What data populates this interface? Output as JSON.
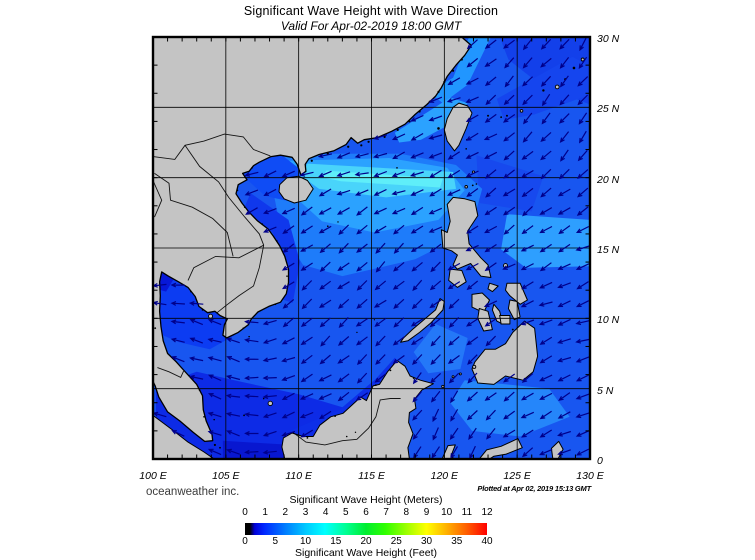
{
  "header": {
    "title": "Significant Wave Height with Wave Direction",
    "subtitle": "Valid For Apr-02-2019 18:00 GMT"
  },
  "footer": {
    "credit": "oceanweather inc.",
    "plotted": "Plotted at Apr 02, 2019 15:13 GMT"
  },
  "chart_data": {
    "type": "map-vector-field",
    "projection": {
      "lon_range": [
        100,
        130
      ],
      "lat_range": [
        0,
        30
      ],
      "grid_interval_deg": 5
    },
    "x_tick_labels": [
      "100 E",
      "105 E",
      "110 E",
      "115 E",
      "120 E",
      "125 E",
      "130 E"
    ],
    "y_tick_labels": [
      "30 N",
      "25 N",
      "20 N",
      "15 N",
      "10 N",
      "5 N",
      "0"
    ],
    "colors": {
      "ocean_base": "#1856F0",
      "land": "#C4C4C4",
      "coast": "#000000",
      "border": "#000000",
      "grid": "#000000",
      "arrow": "#00008B"
    },
    "colorbar": {
      "title_top": "Significant Wave Height (Meters)",
      "title_bottom": "Significant Wave Height (Feet)",
      "meters_ticks": [
        0,
        1,
        2,
        3,
        4,
        5,
        6,
        7,
        8,
        9,
        10,
        11,
        12
      ],
      "feet_ticks": [
        0,
        5,
        10,
        15,
        20,
        25,
        30,
        35,
        40
      ],
      "gradient": [
        {
          "at": 0.0,
          "color": "#000000"
        },
        {
          "at": 0.02,
          "color": "#000000"
        },
        {
          "at": 0.04,
          "color": "#0000D8"
        },
        {
          "at": 0.08,
          "color": "#0028FF"
        },
        {
          "at": 0.17,
          "color": "#0080FF"
        },
        {
          "at": 0.25,
          "color": "#00C8FF"
        },
        {
          "at": 0.33,
          "color": "#00FFFF"
        },
        {
          "at": 0.42,
          "color": "#00FF90"
        },
        {
          "at": 0.5,
          "color": "#00EE30"
        },
        {
          "at": 0.58,
          "color": "#30FF00"
        },
        {
          "at": 0.67,
          "color": "#A0FF00"
        },
        {
          "at": 0.75,
          "color": "#FFFF00"
        },
        {
          "at": 0.83,
          "color": "#FFB400"
        },
        {
          "at": 0.92,
          "color": "#FF5A00"
        },
        {
          "at": 1.0,
          "color": "#FF0000"
        }
      ]
    },
    "wave_height_regions": [
      {
        "name": "pacific-ne-dark",
        "approx_height_m": 2.1,
        "color": "#1340EA",
        "polygon": [
          [
            123.8,
            30
          ],
          [
            130,
            30
          ],
          [
            130,
            25.2
          ],
          [
            126.6,
            26.6
          ],
          [
            124.4,
            28.4
          ]
        ]
      },
      {
        "name": "ryukyu-dark",
        "approx_height_m": 2.1,
        "color": "#1545EE",
        "polygon": [
          [
            123.6,
            25.6
          ],
          [
            128.8,
            28.6
          ],
          [
            130,
            27.9
          ],
          [
            130,
            25.9
          ],
          [
            126.2,
            24.5
          ],
          [
            124.1,
            24.1
          ]
        ]
      },
      {
        "name": "east-taiwan-dark",
        "approx_height_m": 2.1,
        "color": "#1749EE",
        "polygon": [
          [
            122.2,
            21.6
          ],
          [
            126.8,
            20.1
          ],
          [
            126,
            17.6
          ],
          [
            122.4,
            18.2
          ]
        ]
      },
      {
        "name": "ecs-coast-light",
        "approx_height_m": 2.6,
        "color": "#2196FF",
        "polygon": [
          [
            118.9,
            26.1
          ],
          [
            120.6,
            27.1
          ],
          [
            121.7,
            30
          ],
          [
            123.2,
            30
          ],
          [
            121.6,
            26.6
          ],
          [
            119.9,
            25.3
          ]
        ]
      },
      {
        "name": "taiwan-strait-light",
        "approx_height_m": 2.7,
        "color": "#2BA2FF",
        "polygon": [
          [
            116.6,
            23.2
          ],
          [
            118.9,
            24.7
          ],
          [
            120.4,
            25.7
          ],
          [
            121.6,
            25.3
          ],
          [
            120.4,
            23.8
          ],
          [
            118.4,
            22.7
          ],
          [
            116.9,
            22.5
          ]
        ]
      },
      {
        "name": "north-scs-light",
        "approx_height_m": 2.4,
        "color": "#1E7CFA",
        "polygon": [
          [
            108.4,
            21.7
          ],
          [
            117,
            21.7
          ],
          [
            120.8,
            20.9
          ],
          [
            122.6,
            19.2
          ],
          [
            121.8,
            16.2
          ],
          [
            118,
            14.2
          ],
          [
            113,
            13
          ],
          [
            110.3,
            13.8
          ],
          [
            108.8,
            16.2
          ],
          [
            108.2,
            19.3
          ]
        ]
      },
      {
        "name": "north-scs-lighter",
        "approx_height_m": 2.7,
        "color": "#2BA2FF",
        "polygon": [
          [
            109.3,
            21.2
          ],
          [
            116.2,
            21.4
          ],
          [
            120.2,
            20.7
          ],
          [
            121.4,
            19.1
          ],
          [
            119.6,
            17
          ],
          [
            115.2,
            16.1
          ],
          [
            111.6,
            16.9
          ],
          [
            110,
            18.4
          ],
          [
            109.3,
            20.1
          ]
        ]
      },
      {
        "name": "band-pale-cyan",
        "approx_height_m": 3.0,
        "color": "#49D4FA",
        "polygon": [
          [
            110.6,
            21
          ],
          [
            120.6,
            20.4
          ],
          [
            120.8,
            19.2
          ],
          [
            116,
            18.6
          ],
          [
            111.4,
            19.2
          ],
          [
            110.2,
            20.1
          ]
        ]
      },
      {
        "name": "band-cyan-core",
        "approx_height_m": 3.3,
        "color": "#5FEEF9",
        "polygon": [
          [
            111.9,
            20.5
          ],
          [
            119.9,
            19.95
          ],
          [
            119.7,
            19.3
          ],
          [
            112.9,
            19.75
          ],
          [
            111.6,
            20.05
          ]
        ]
      },
      {
        "name": "east-luzon-light",
        "approx_height_m": 2.7,
        "color": "#2E9FFF",
        "polygon": [
          [
            124.3,
            17.4
          ],
          [
            130,
            17
          ],
          [
            130,
            13.7
          ],
          [
            125.6,
            13.6
          ],
          [
            123.9,
            14.9
          ]
        ]
      },
      {
        "name": "vietnam-coast-dark",
        "approx_height_m": 1.7,
        "color": "#1038EC",
        "polygon": [
          [
            106.7,
            18.9
          ],
          [
            109.3,
            17
          ],
          [
            110.1,
            14
          ],
          [
            109.6,
            11.1
          ],
          [
            108.1,
            11.6
          ],
          [
            109.1,
            14.1
          ],
          [
            108.2,
            16.1
          ],
          [
            106.2,
            17.7
          ]
        ]
      },
      {
        "name": "gulf-tonkin-bright",
        "approx_height_m": 1.6,
        "color": "#0F4CF5",
        "polygon": [
          [
            105.9,
            21.8
          ],
          [
            108.6,
            21.8
          ],
          [
            110.1,
            20.6
          ],
          [
            109.9,
            18.2
          ],
          [
            107.7,
            18.7
          ],
          [
            106.1,
            20.2
          ]
        ]
      },
      {
        "name": "gulf-tonkin-dark",
        "approx_height_m": 0.8,
        "color": "#0A1EE0",
        "polygon": [
          [
            105.9,
            21.8
          ],
          [
            107.6,
            21.5
          ],
          [
            106.6,
            20.6
          ],
          [
            105.95,
            20.9
          ]
        ]
      },
      {
        "name": "gulf-thailand",
        "approx_height_m": 1.4,
        "color": "#0C3CF2",
        "polygon": [
          [
            100.4,
            13.5
          ],
          [
            102.9,
            12.4
          ],
          [
            105.2,
            11
          ],
          [
            105.6,
            8.8
          ],
          [
            103.9,
            7.8
          ],
          [
            101.8,
            8.3
          ],
          [
            100.2,
            9
          ]
        ]
      },
      {
        "name": "gulf-thailand-dark",
        "approx_height_m": 0.6,
        "color": "#0718D8",
        "polygon": [
          [
            100.3,
            13.5
          ],
          [
            101.6,
            13.1
          ],
          [
            100.9,
            11.9
          ],
          [
            100.2,
            12.1
          ]
        ]
      },
      {
        "name": "south-dark",
        "approx_height_m": 1.3,
        "color": "#0D2BE6",
        "polygon": [
          [
            100.2,
            5.2
          ],
          [
            103,
            6.2
          ],
          [
            106,
            5.5
          ],
          [
            110,
            4.6
          ],
          [
            115.2,
            3
          ],
          [
            117.6,
            1
          ],
          [
            117.2,
            0
          ],
          [
            100.2,
            0
          ]
        ]
      },
      {
        "name": "java-sea-dark",
        "approx_height_m": 0.9,
        "color": "#0817D0",
        "polygon": [
          [
            104.8,
            1.3
          ],
          [
            111,
            0.9
          ],
          [
            117.2,
            0.5
          ],
          [
            117.2,
            0
          ],
          [
            104.8,
            0
          ]
        ]
      },
      {
        "name": "borneo-nw-dark",
        "approx_height_m": 1.3,
        "color": "#0D2FE8",
        "polygon": [
          [
            109.4,
            2
          ],
          [
            112.8,
            3.5
          ],
          [
            115.3,
            5.7
          ],
          [
            116.6,
            7.2
          ],
          [
            117.3,
            6.4
          ],
          [
            115.6,
            4.8
          ],
          [
            112.8,
            2.8
          ],
          [
            110.2,
            1.6
          ]
        ]
      },
      {
        "name": "sulu-light",
        "approx_height_m": 2.3,
        "color": "#2478F8",
        "polygon": [
          [
            119.4,
            9.6
          ],
          [
            121.6,
            8.6
          ],
          [
            121.1,
            6.4
          ],
          [
            118.9,
            6.1
          ],
          [
            117.9,
            7.6
          ]
        ]
      },
      {
        "name": "celebes-light",
        "approx_height_m": 2.4,
        "color": "#2586FA",
        "polygon": [
          [
            121.4,
            5.6
          ],
          [
            127.2,
            5
          ],
          [
            128.6,
            3
          ],
          [
            125.2,
            1.6
          ],
          [
            121.9,
            2
          ],
          [
            120.4,
            4
          ]
        ]
      }
    ],
    "wave_direction_field": {
      "lats": [
        30,
        25,
        20,
        15,
        10,
        5,
        0
      ],
      "lons": [
        100,
        105,
        110,
        115,
        120,
        125,
        130
      ],
      "bearing_toward_deg": [
        [
          240,
          240,
          240,
          242,
          246,
          222,
          214
        ],
        [
          246,
          246,
          246,
          248,
          252,
          226,
          216
        ],
        [
          250,
          250,
          253,
          251,
          246,
          230,
          224
        ],
        [
          236,
          236,
          231,
          228,
          234,
          240,
          246
        ],
        [
          282,
          287,
          231,
          228,
          232,
          242,
          250
        ],
        [
          290,
          294,
          240,
          232,
          214,
          236,
          252
        ],
        [
          282,
          286,
          245,
          238,
          206,
          230,
          250
        ]
      ]
    }
  }
}
